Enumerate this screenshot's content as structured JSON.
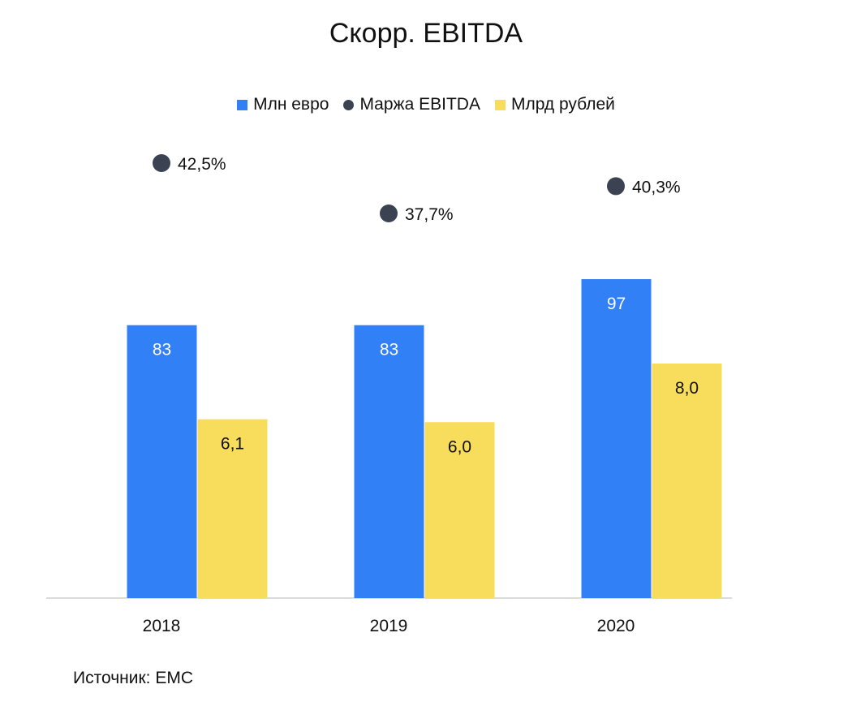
{
  "chart_data": {
    "type": "bar",
    "title": "Скорр. EBITDA",
    "categories": [
      "2018",
      "2019",
      "2020"
    ],
    "series": [
      {
        "name": "Млн евро",
        "values": [
          83,
          83,
          97
        ],
        "labels": [
          "83",
          "83",
          "97"
        ],
        "color": "#3280f6",
        "label_color": "#ffffff",
        "kind": "bar"
      },
      {
        "name": "Млрд рублей",
        "values": [
          6.1,
          6.0,
          8.0
        ],
        "labels": [
          "6,1",
          "6,0",
          "8,0"
        ],
        "color": "#f8dc5b",
        "label_color": "#111111",
        "kind": "bar"
      },
      {
        "name": "Маржа EBITDA",
        "values": [
          42.5,
          37.7,
          40.3
        ],
        "labels": [
          "42,5%",
          "37,7%",
          "40,3%"
        ],
        "color": "#3b4252",
        "kind": "marker"
      }
    ],
    "legend": [
      "Млн евро",
      "Маржа EBITDA",
      "Млрд рублей"
    ],
    "xlabel": "",
    "ylabel": "",
    "grid": false
  },
  "source": "Источник: ЕМС"
}
